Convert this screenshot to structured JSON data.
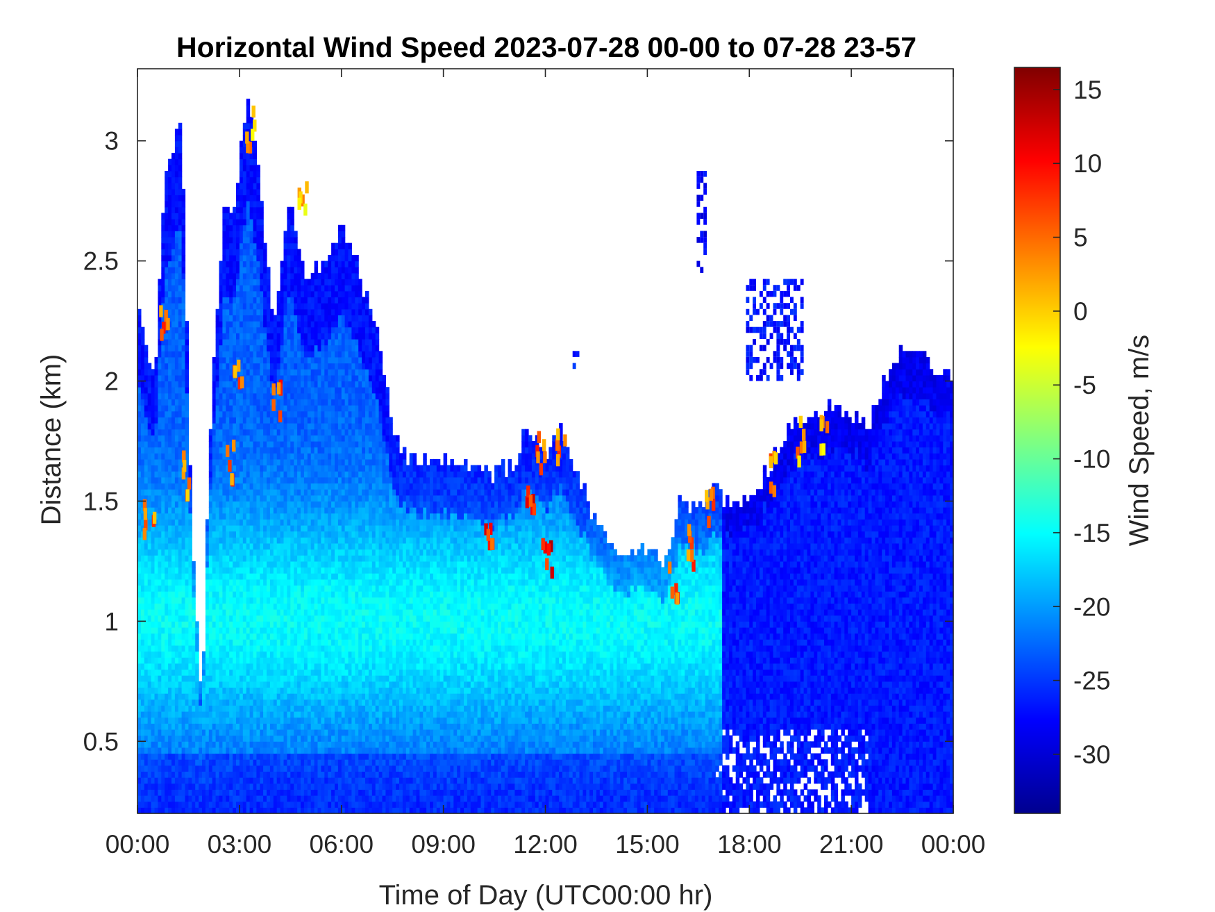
{
  "chart_data": {
    "type": "heatmap",
    "title": "Horizontal Wind Speed 2023-07-28 00-00 to 07-28 23-57",
    "xlabel": "Time of Day (UTC00:00 hr)",
    "ylabel": "Distance (km)",
    "colorbar_label": "Wind Speed, m/s",
    "xlim_hours": [
      0,
      24
    ],
    "ylim_km": [
      0.2,
      3.3
    ],
    "x_ticks": [
      {
        "value": 0,
        "label": "00:00"
      },
      {
        "value": 3,
        "label": "03:00"
      },
      {
        "value": 6,
        "label": "06:00"
      },
      {
        "value": 9,
        "label": "09:00"
      },
      {
        "value": 12,
        "label": "12:00"
      },
      {
        "value": 15,
        "label": "15:00"
      },
      {
        "value": 18,
        "label": "18:00"
      },
      {
        "value": 21,
        "label": "21:00"
      },
      {
        "value": 24,
        "label": "00:00"
      }
    ],
    "y_ticks": [
      {
        "value": 0.5,
        "label": "0.5"
      },
      {
        "value": 1,
        "label": "1"
      },
      {
        "value": 1.5,
        "label": "1.5"
      },
      {
        "value": 2,
        "label": "2"
      },
      {
        "value": 2.5,
        "label": "2.5"
      },
      {
        "value": 3,
        "label": "3"
      }
    ],
    "colorbar_range": [
      -34,
      16.5
    ],
    "colorbar_ticks": [
      {
        "value": 15,
        "label": "15"
      },
      {
        "value": 10,
        "label": "10"
      },
      {
        "value": 5,
        "label": "5"
      },
      {
        "value": 0,
        "label": "0"
      },
      {
        "value": -5,
        "label": "-5"
      },
      {
        "value": -10,
        "label": "-10"
      },
      {
        "value": -15,
        "label": "-15"
      },
      {
        "value": -20,
        "label": "-20"
      },
      {
        "value": -25,
        "label": "-25"
      },
      {
        "value": -30,
        "label": "-30"
      }
    ],
    "colormap": [
      "#00008f",
      "#0000ff",
      "#0080ff",
      "#00ffff",
      "#80ff80",
      "#ffff00",
      "#ff8000",
      "#ff0000",
      "#800000"
    ],
    "data_top_km_by_hour": [
      {
        "t": 0.0,
        "h": 2.3
      },
      {
        "t": 0.5,
        "h": 2.0
      },
      {
        "t": 0.8,
        "h": 2.8
      },
      {
        "t": 1.0,
        "h": 2.9
      },
      {
        "t": 1.3,
        "h": 3.1
      },
      {
        "t": 1.6,
        "h": 1.4
      },
      {
        "t": 1.9,
        "h": 0.63
      },
      {
        "t": 2.0,
        "h": 1.15
      },
      {
        "t": 2.2,
        "h": 2.0
      },
      {
        "t": 2.6,
        "h": 2.8
      },
      {
        "t": 2.8,
        "h": 2.6
      },
      {
        "t": 3.0,
        "h": 2.9
      },
      {
        "t": 3.3,
        "h": 3.2
      },
      {
        "t": 3.6,
        "h": 2.8
      },
      {
        "t": 4.0,
        "h": 2.2
      },
      {
        "t": 4.5,
        "h": 2.75
      },
      {
        "t": 5.0,
        "h": 2.4
      },
      {
        "t": 5.5,
        "h": 2.5
      },
      {
        "t": 6.0,
        "h": 2.65
      },
      {
        "t": 6.4,
        "h": 2.5
      },
      {
        "t": 6.8,
        "h": 2.3
      },
      {
        "t": 7.2,
        "h": 2.1
      },
      {
        "t": 7.5,
        "h": 1.75
      },
      {
        "t": 8.0,
        "h": 1.68
      },
      {
        "t": 9.0,
        "h": 1.66
      },
      {
        "t": 10.0,
        "h": 1.6
      },
      {
        "t": 11.0,
        "h": 1.62
      },
      {
        "t": 11.5,
        "h": 1.8
      },
      {
        "t": 12.0,
        "h": 1.7
      },
      {
        "t": 12.5,
        "h": 1.78
      },
      {
        "t": 13.0,
        "h": 1.6
      },
      {
        "t": 13.5,
        "h": 1.4
      },
      {
        "t": 14.0,
        "h": 1.3
      },
      {
        "t": 14.5,
        "h": 1.27
      },
      {
        "t": 15.0,
        "h": 1.3
      },
      {
        "t": 15.5,
        "h": 1.25
      },
      {
        "t": 16.0,
        "h": 1.5
      },
      {
        "t": 16.5,
        "h": 1.45
      },
      {
        "t": 17.0,
        "h": 1.55
      },
      {
        "t": 17.5,
        "h": 1.45
      },
      {
        "t": 18.0,
        "h": 1.5
      },
      {
        "t": 18.5,
        "h": 1.6
      },
      {
        "t": 19.0,
        "h": 1.75
      },
      {
        "t": 19.5,
        "h": 1.85
      },
      {
        "t": 20.0,
        "h": 1.82
      },
      {
        "t": 20.5,
        "h": 1.9
      },
      {
        "t": 21.0,
        "h": 1.85
      },
      {
        "t": 21.5,
        "h": 1.8
      },
      {
        "t": 22.0,
        "h": 2.0
      },
      {
        "t": 22.5,
        "h": 2.15
      },
      {
        "t": 23.0,
        "h": 2.1
      },
      {
        "t": 23.5,
        "h": 2.05
      },
      {
        "t": 24.0,
        "h": 2.0
      }
    ],
    "high_speed_patches": [
      {
        "t": 0.3,
        "d": 1.45,
        "v": 8
      },
      {
        "t": 0.7,
        "d": 2.25,
        "v": 9
      },
      {
        "t": 1.4,
        "d": 1.6,
        "v": 7
      },
      {
        "t": 2.7,
        "d": 1.65,
        "v": 9
      },
      {
        "t": 2.9,
        "d": 2.05,
        "v": 8
      },
      {
        "t": 3.3,
        "d": 3.05,
        "v": 5
      },
      {
        "t": 4.1,
        "d": 1.9,
        "v": 10
      },
      {
        "t": 4.8,
        "d": 2.75,
        "v": 4
      },
      {
        "t": 10.3,
        "d": 1.4,
        "v": 12
      },
      {
        "t": 11.5,
        "d": 1.45,
        "v": 13
      },
      {
        "t": 11.8,
        "d": 1.72,
        "v": 9
      },
      {
        "t": 12.0,
        "d": 1.25,
        "v": 14
      },
      {
        "t": 12.4,
        "d": 1.72,
        "v": 8
      },
      {
        "t": 15.7,
        "d": 1.15,
        "v": 10
      },
      {
        "t": 16.2,
        "d": 1.3,
        "v": 9
      },
      {
        "t": 16.8,
        "d": 1.5,
        "v": 8
      },
      {
        "t": 18.6,
        "d": 1.62,
        "v": 7
      },
      {
        "t": 19.5,
        "d": 1.75,
        "v": 6
      },
      {
        "t": 20.1,
        "d": 1.78,
        "v": 5
      }
    ],
    "isolated_patches": [
      {
        "t0": 16.45,
        "t1": 16.75,
        "d0": 2.45,
        "d1": 2.85,
        "v": -28
      },
      {
        "t0": 12.8,
        "t1": 12.95,
        "d0": 2.05,
        "d1": 2.12,
        "v": -26
      },
      {
        "t0": 17.9,
        "t1": 19.6,
        "d0": 2.0,
        "d1": 2.4,
        "v": -27
      }
    ]
  }
}
